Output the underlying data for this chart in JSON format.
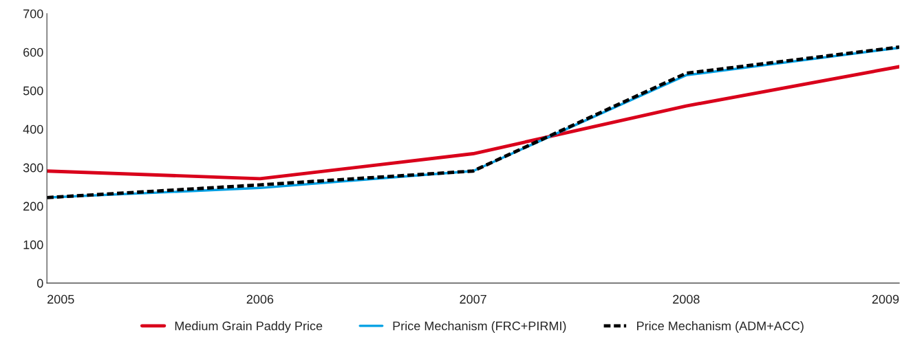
{
  "chart_data": {
    "type": "line",
    "x": [
      2005,
      2006,
      2007,
      2008,
      2009
    ],
    "series": [
      {
        "name": "Medium Grain Paddy Price",
        "color": "#d9001b",
        "values": [
          291,
          271,
          336,
          460,
          562
        ],
        "line_style": "solid"
      },
      {
        "name": "Price Mechanism (FRC+PIRMI)",
        "color": "#009fe3",
        "values": [
          222,
          247,
          291,
          540,
          611
        ],
        "line_style": "solid"
      },
      {
        "name": "Price Mechanism (ADM+ACC)",
        "color": "#000000",
        "values": [
          222,
          255,
          291,
          545,
          613
        ],
        "line_style": "dashed"
      }
    ],
    "xlim": [
      2005,
      2009
    ],
    "xticks": [
      2005,
      2006,
      2007,
      2008,
      2009
    ],
    "ylim": [
      0,
      700
    ],
    "yticks": [
      0,
      100,
      200,
      300,
      400,
      500,
      600,
      700
    ],
    "grid": false,
    "legend": "bottom",
    "marker": "none"
  }
}
